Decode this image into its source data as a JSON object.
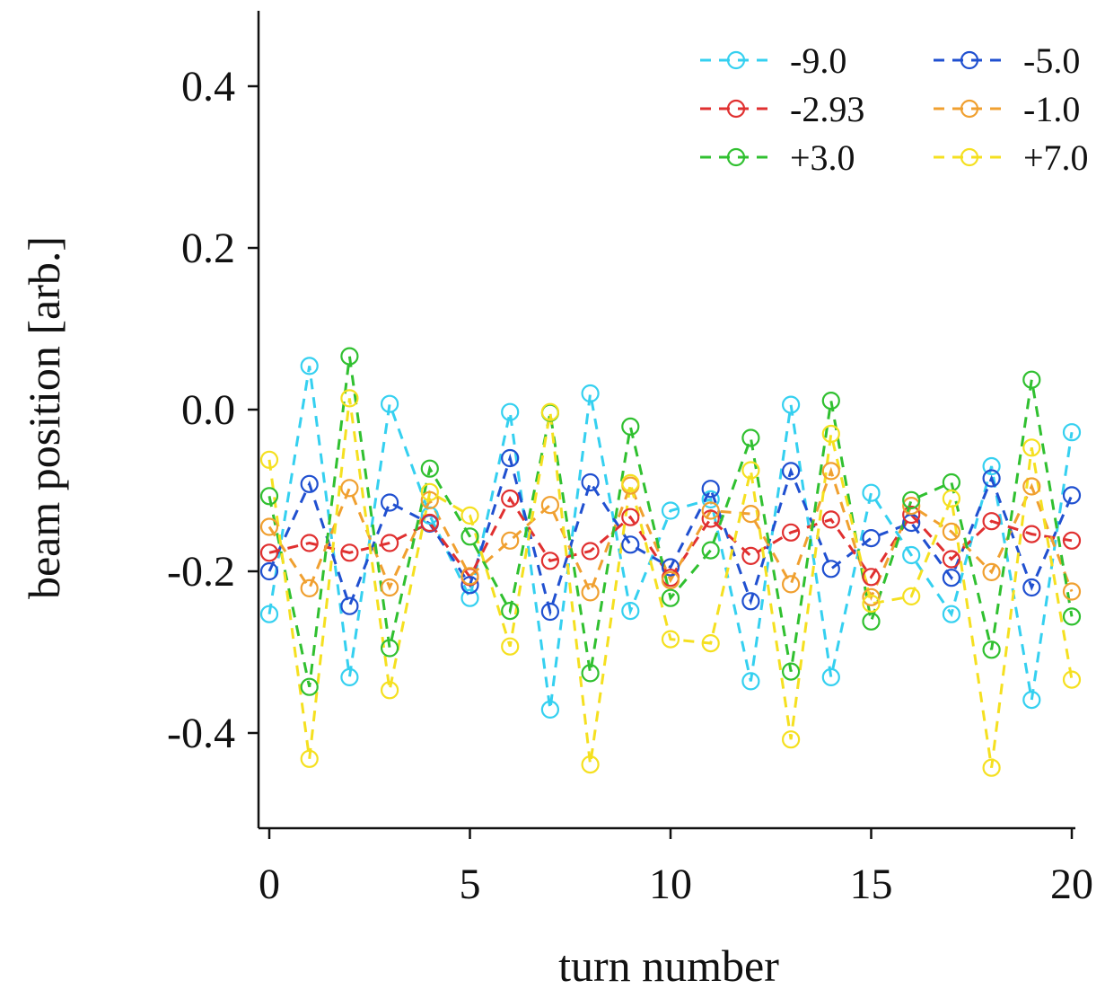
{
  "chart_data": {
    "type": "line",
    "title": "",
    "xlabel": "turn number",
    "ylabel": "beam position [arb.]",
    "xlim": [
      0,
      20
    ],
    "ylim": [
      -0.51,
      0.49
    ],
    "x_ticks": [
      0,
      5,
      10,
      15,
      20
    ],
    "x_tick_labels": [
      "0",
      "5",
      "10",
      "15",
      "20"
    ],
    "y_ticks": [
      0.4,
      0.2,
      0.0,
      -0.2,
      -0.4
    ],
    "y_tick_labels": [
      "0.4",
      "0.2",
      "0.0",
      "-0.2",
      "-0.4"
    ],
    "grid": false,
    "legend_position": "top-right",
    "x": [
      0,
      1,
      2,
      3,
      4,
      5,
      6,
      7,
      8,
      9,
      10,
      11,
      12,
      13,
      14,
      15,
      16,
      17,
      18,
      19,
      20
    ],
    "series": [
      {
        "name": "-9.0",
        "color": "#35d0f0",
        "values": [
          -0.253,
          0.054,
          -0.331,
          0.007,
          -0.131,
          -0.233,
          -0.003,
          -0.371,
          0.02,
          -0.249,
          -0.125,
          -0.111,
          -0.336,
          0.006,
          -0.331,
          -0.103,
          -0.18,
          -0.253,
          -0.07,
          -0.359,
          -0.028
        ]
      },
      {
        "name": "-5.0",
        "color": "#2050d0",
        "values": [
          -0.2,
          -0.092,
          -0.243,
          -0.115,
          -0.141,
          -0.217,
          -0.06,
          -0.25,
          -0.09,
          -0.167,
          -0.195,
          -0.098,
          -0.237,
          -0.076,
          -0.197,
          -0.159,
          -0.14,
          -0.208,
          -0.085,
          -0.22,
          -0.106
        ]
      },
      {
        "name": "-2.93",
        "color": "#e03030",
        "values": [
          -0.177,
          -0.165,
          -0.177,
          -0.165,
          -0.14,
          -0.207,
          -0.11,
          -0.187,
          -0.175,
          -0.133,
          -0.208,
          -0.135,
          -0.181,
          -0.152,
          -0.136,
          -0.207,
          -0.13,
          -0.185,
          -0.138,
          -0.154,
          -0.162
        ]
      },
      {
        "name": "-1.0",
        "color": "#f0a030",
        "values": [
          -0.145,
          -0.221,
          -0.097,
          -0.22,
          -0.112,
          -0.206,
          -0.162,
          -0.118,
          -0.226,
          -0.094,
          -0.211,
          -0.125,
          -0.129,
          -0.216,
          -0.076,
          -0.232,
          -0.119,
          -0.151,
          -0.201,
          -0.095,
          -0.225
        ]
      },
      {
        "name": "+3.0",
        "color": "#30c030",
        "values": [
          -0.107,
          -0.343,
          0.066,
          -0.295,
          -0.073,
          -0.157,
          -0.249,
          -0.004,
          -0.326,
          -0.021,
          -0.233,
          -0.174,
          -0.035,
          -0.324,
          0.011,
          -0.262,
          -0.112,
          -0.09,
          -0.297,
          0.037,
          -0.256
        ]
      },
      {
        "name": "+7.0",
        "color": "#f5e020",
        "values": [
          -0.062,
          -0.432,
          0.014,
          -0.347,
          -0.102,
          -0.131,
          -0.293,
          -0.003,
          -0.439,
          -0.091,
          -0.284,
          -0.289,
          -0.075,
          -0.408,
          -0.03,
          -0.24,
          -0.231,
          -0.11,
          -0.443,
          -0.047,
          -0.334
        ]
      }
    ]
  }
}
